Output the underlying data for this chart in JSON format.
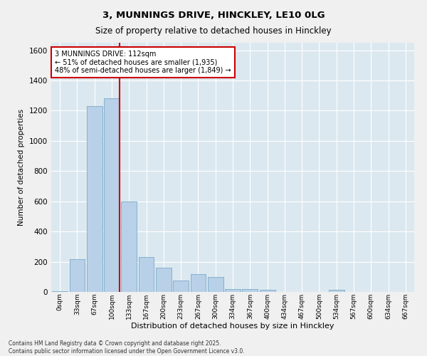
{
  "title1": "3, MUNNINGS DRIVE, HINCKLEY, LE10 0LG",
  "title2": "Size of property relative to detached houses in Hinckley",
  "xlabel": "Distribution of detached houses by size in Hinckley",
  "ylabel": "Number of detached properties",
  "categories": [
    "0sqm",
    "33sqm",
    "67sqm",
    "100sqm",
    "133sqm",
    "167sqm",
    "200sqm",
    "233sqm",
    "267sqm",
    "300sqm",
    "334sqm",
    "367sqm",
    "400sqm",
    "434sqm",
    "467sqm",
    "500sqm",
    "534sqm",
    "567sqm",
    "600sqm",
    "634sqm",
    "667sqm"
  ],
  "values": [
    5,
    215,
    1230,
    1280,
    600,
    230,
    160,
    75,
    120,
    100,
    20,
    20,
    15,
    0,
    0,
    0,
    15,
    0,
    0,
    0,
    0
  ],
  "bar_color": "#b8d0e8",
  "bar_edge_color": "#7aaac8",
  "background_color": "#dce8f0",
  "grid_color": "#ffffff",
  "vline_color": "#cc0000",
  "annotation_text": "3 MUNNINGS DRIVE: 112sqm\n← 51% of detached houses are smaller (1,935)\n48% of semi-detached houses are larger (1,849) →",
  "annotation_box_color": "#ffffff",
  "annotation_box_edge": "#cc0000",
  "ylim": [
    0,
    1650
  ],
  "yticks": [
    0,
    200,
    400,
    600,
    800,
    1000,
    1200,
    1400,
    1600
  ],
  "footnote1": "Contains HM Land Registry data © Crown copyright and database right 2025.",
  "footnote2": "Contains public sector information licensed under the Open Government Licence v3.0.",
  "fig_bg": "#f0f0f0"
}
